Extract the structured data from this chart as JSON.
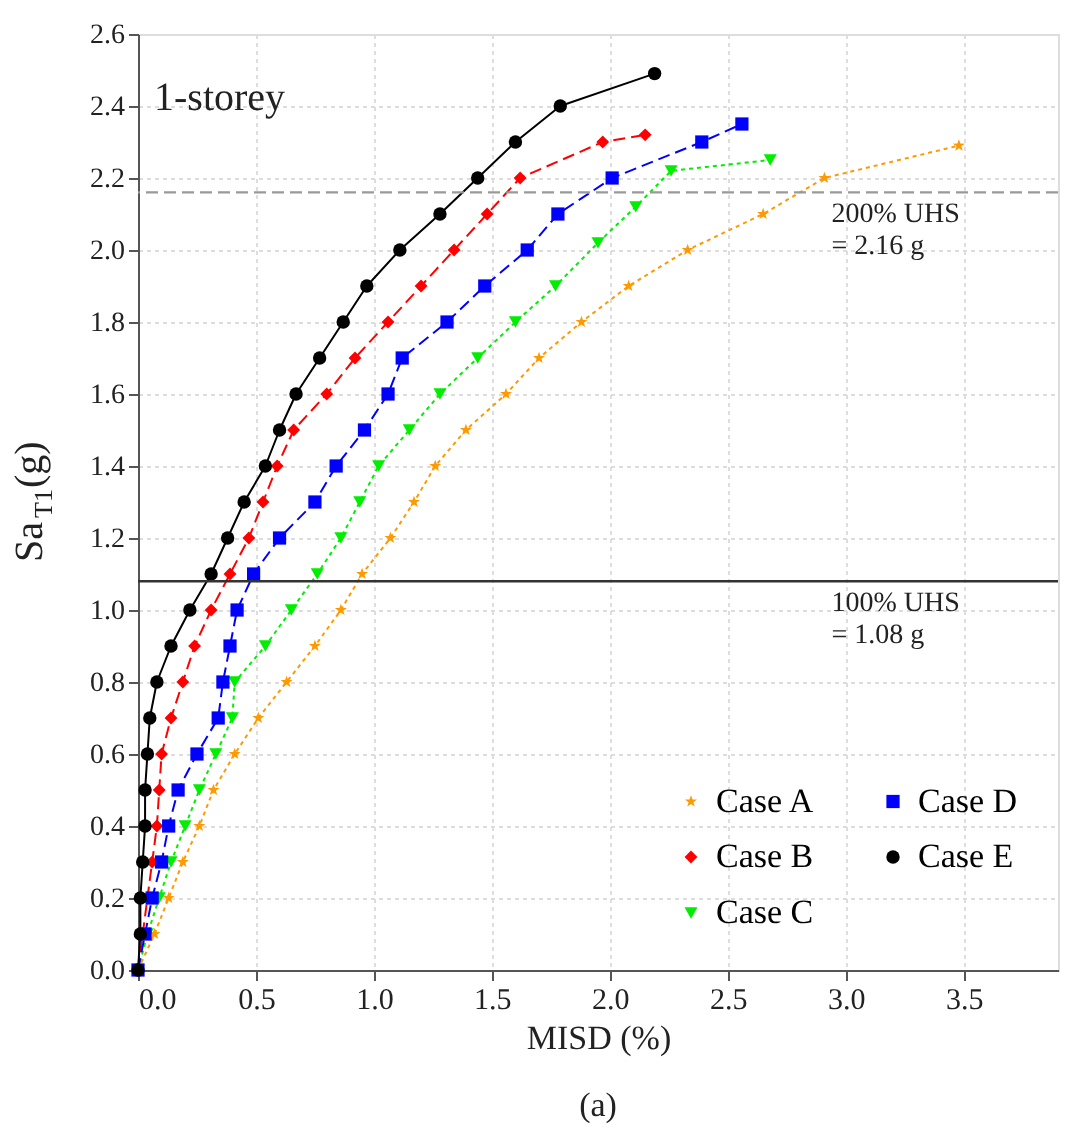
{
  "chart_data": {
    "type": "line",
    "xlabel": "MISD (%)",
    "ylabel": "Sa$_{T1}$(g)",
    "annotations": [
      "1-storey",
      "(a)"
    ],
    "xlim": [
      0,
      3.9
    ],
    "ylim": [
      0,
      2.6
    ],
    "xticks": [
      {
        "value": 0,
        "label": "0.0"
      },
      0.5,
      {
        "value": 1,
        "label": "1.0"
      },
      1.5,
      {
        "value": 2,
        "label": "2.0"
      },
      2.5,
      {
        "value": 3,
        "label": "3.0"
      },
      3.5
    ],
    "yticks": [
      {
        "value": 0,
        "label": "0.0"
      },
      0.2,
      0.4,
      0.6,
      0.8,
      {
        "value": 1,
        "label": "1.0"
      },
      1.2,
      1.4,
      1.6,
      1.8,
      {
        "value": 2,
        "label": "2.0"
      },
      2.2,
      2.4,
      2.6
    ],
    "grid": true,
    "legend": "bottom right",
    "ref_lines": [
      {
        "axis": "y",
        "value": 2.16,
        "label": "200% UHS\n= 2.16 g",
        "color": "#999999",
        "line_style": "dashed"
      },
      {
        "axis": "y",
        "value": 1.08,
        "label": "100% UHS\n= 1.08 g",
        "color": "#333333",
        "line_style": "solid"
      }
    ],
    "series": [
      {
        "name": "Case A",
        "color": "#ff9900",
        "marker": "star",
        "line_style": "dotted",
        "x": [
          0,
          0.07,
          0.13,
          0.19,
          0.26,
          0.32,
          0.41,
          0.51,
          0.63,
          0.75,
          0.86,
          0.95,
          1.07,
          1.17,
          1.26,
          1.39,
          1.56,
          1.7,
          1.88,
          2.08,
          2.33,
          2.65,
          2.91,
          3.48
        ],
        "values": [
          0,
          0.1,
          0.2,
          0.3,
          0.4,
          0.5,
          0.6,
          0.7,
          0.8,
          0.9,
          1.0,
          1.1,
          1.2,
          1.3,
          1.4,
          1.5,
          1.6,
          1.7,
          1.8,
          1.9,
          2.0,
          2.1,
          2.2,
          2.29
        ]
      },
      {
        "name": "Case B",
        "color": "#ff0000",
        "marker": "diamond",
        "line_style": "dashed",
        "x": [
          0,
          0.02,
          0.04,
          0.06,
          0.08,
          0.09,
          0.1,
          0.14,
          0.19,
          0.24,
          0.31,
          0.39,
          0.47,
          0.53,
          0.59,
          0.66,
          0.8,
          0.92,
          1.06,
          1.2,
          1.34,
          1.48,
          1.62,
          1.97,
          2.15
        ],
        "values": [
          0,
          0.1,
          0.2,
          0.3,
          0.4,
          0.5,
          0.6,
          0.7,
          0.8,
          0.9,
          1.0,
          1.1,
          1.2,
          1.3,
          1.4,
          1.5,
          1.6,
          1.7,
          1.8,
          1.9,
          2.0,
          2.1,
          2.2,
          2.3,
          2.32
        ]
      },
      {
        "name": "Case C",
        "color": "#00ee00",
        "marker": "triangle-down",
        "line_style": "dotted",
        "x": [
          0,
          0.04,
          0.09,
          0.14,
          0.2,
          0.26,
          0.33,
          0.4,
          0.41,
          0.54,
          0.65,
          0.76,
          0.86,
          0.94,
          1.02,
          1.15,
          1.28,
          1.44,
          1.6,
          1.77,
          1.95,
          2.11,
          2.26,
          2.68
        ],
        "values": [
          0,
          0.1,
          0.2,
          0.3,
          0.4,
          0.5,
          0.6,
          0.7,
          0.8,
          0.9,
          1.0,
          1.1,
          1.2,
          1.3,
          1.4,
          1.5,
          1.6,
          1.7,
          1.8,
          1.9,
          2.02,
          2.12,
          2.22,
          2.25
        ]
      },
      {
        "name": "Case D",
        "color": "#0000ff",
        "marker": "square",
        "line_style": "dashed",
        "x": [
          0,
          0.03,
          0.06,
          0.1,
          0.13,
          0.17,
          0.25,
          0.34,
          0.36,
          0.39,
          0.42,
          0.49,
          0.6,
          0.75,
          0.84,
          0.96,
          1.06,
          1.12,
          1.31,
          1.47,
          1.65,
          1.78,
          2.01,
          2.39,
          2.56
        ],
        "values": [
          0,
          0.1,
          0.2,
          0.3,
          0.4,
          0.5,
          0.6,
          0.7,
          0.8,
          0.9,
          1.0,
          1.1,
          1.2,
          1.3,
          1.4,
          1.5,
          1.6,
          1.7,
          1.8,
          1.9,
          2.0,
          2.1,
          2.2,
          2.3,
          2.35
        ]
      },
      {
        "name": "Case E",
        "color": "#000000",
        "marker": "circle",
        "line_style": "solid",
        "x": [
          0,
          0.01,
          0.01,
          0.02,
          0.03,
          0.03,
          0.04,
          0.05,
          0.08,
          0.14,
          0.22,
          0.31,
          0.38,
          0.45,
          0.54,
          0.6,
          0.67,
          0.77,
          0.87,
          0.97,
          1.11,
          1.28,
          1.44,
          1.6,
          1.79,
          2.19
        ],
        "values": [
          0,
          0.1,
          0.2,
          0.3,
          0.4,
          0.5,
          0.6,
          0.7,
          0.8,
          0.9,
          1.0,
          1.1,
          1.2,
          1.3,
          1.4,
          1.5,
          1.6,
          1.7,
          1.8,
          1.9,
          2.0,
          2.1,
          2.2,
          2.3,
          2.4,
          2.49
        ]
      }
    ]
  }
}
